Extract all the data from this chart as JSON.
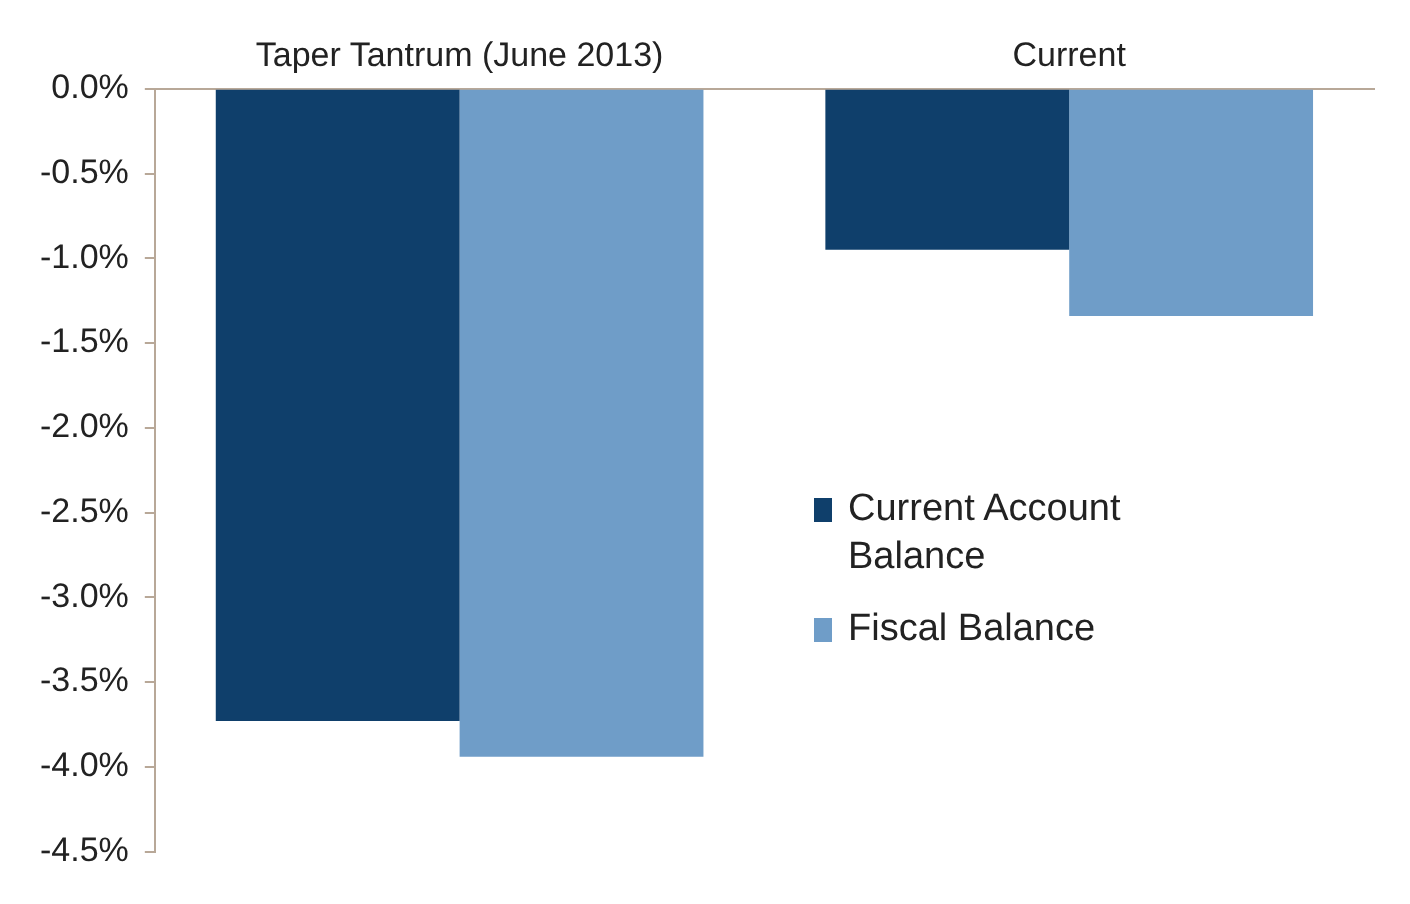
{
  "chart_data": {
    "type": "bar",
    "categories": [
      "Taper Tantrum (June 2013)",
      "Current"
    ],
    "series": [
      {
        "name": "Current Account Balance",
        "color": "#0f3f6b",
        "values": [
          -3.73,
          -0.95
        ]
      },
      {
        "name": "Fiscal Balance",
        "color": "#6f9dc8",
        "values": [
          -3.94,
          -1.34
        ]
      }
    ],
    "ylim": [
      -4.5,
      0
    ],
    "yticks": [
      {
        "value": 0,
        "label": "0.0%"
      },
      {
        "value": -0.5,
        "label": "-0.5%"
      },
      {
        "value": -1,
        "label": "-1.0%"
      },
      {
        "value": -1.5,
        "label": "-1.5%"
      },
      {
        "value": -2,
        "label": "-2.0%"
      },
      {
        "value": -2.5,
        "label": "-2.5%"
      },
      {
        "value": -3,
        "label": "-3.0%"
      },
      {
        "value": -3.5,
        "label": "-3.5%"
      },
      {
        "value": -4,
        "label": "-4.0%"
      },
      {
        "value": -4.5,
        "label": "-4.5%"
      }
    ],
    "grid": false,
    "legend": "right"
  }
}
